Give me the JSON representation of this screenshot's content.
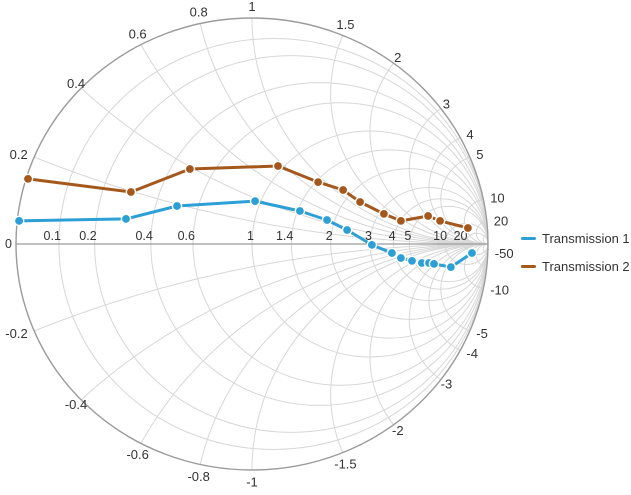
{
  "legend": {
    "items": [
      {
        "label": "Transmission 1",
        "color": "#2b9fd6"
      },
      {
        "label": "Transmission 2",
        "color": "#a4581c"
      }
    ]
  },
  "chart_data": {
    "type": "smith",
    "title": "",
    "grid_on": true,
    "legend_position": "right-middle",
    "colors": {
      "boundary": "#9b9b9b",
      "grid": "#d7d7d7",
      "axis": "#9b9b9b",
      "label": "#333333",
      "background": "#ffffff"
    },
    "grid": {
      "resistance_circles": [
        0.1,
        0.2,
        0.4,
        0.6,
        1,
        1.4,
        2,
        3,
        4,
        5,
        10,
        20
      ],
      "reactance_arcs": [
        0.2,
        0.4,
        0.6,
        0.8,
        1,
        1.5,
        2,
        3,
        4,
        5,
        10,
        20,
        50
      ],
      "axis_labels": [
        {
          "text": "0",
          "r": 0
        },
        {
          "text": "0.1",
          "r": 0.1
        },
        {
          "text": "0.2",
          "r": 0.2
        },
        {
          "text": "0.4",
          "r": 0.4
        },
        {
          "text": "0.6",
          "r": 0.6
        },
        {
          "text": "1",
          "r": 1
        },
        {
          "text": "1.4",
          "r": 1.4
        },
        {
          "text": "2",
          "r": 2
        },
        {
          "text": "3",
          "r": 3
        },
        {
          "text": "4",
          "r": 4
        },
        {
          "text": "5",
          "r": 5
        },
        {
          "text": "10",
          "r": 10
        },
        {
          "text": "20",
          "r": 20
        }
      ],
      "boundary_labels": [
        {
          "text": "0.2",
          "x": 0.2
        },
        {
          "text": "0.4",
          "x": 0.4
        },
        {
          "text": "0.6",
          "x": 0.6
        },
        {
          "text": "0.8",
          "x": 0.8
        },
        {
          "text": "1",
          "x": 1
        },
        {
          "text": "1.5",
          "x": 1.5
        },
        {
          "text": "2",
          "x": 2
        },
        {
          "text": "3",
          "x": 3
        },
        {
          "text": "4",
          "x": 4
        },
        {
          "text": "5",
          "x": 5
        },
        {
          "text": "10",
          "x": 10
        },
        {
          "text": "20",
          "x": 20
        },
        {
          "text": "-50",
          "x": -50
        },
        {
          "text": "-10",
          "x": -10
        },
        {
          "text": "-5",
          "x": -5
        },
        {
          "text": "-4",
          "x": -4
        },
        {
          "text": "-3",
          "x": -3
        },
        {
          "text": "-2",
          "x": -2
        },
        {
          "text": "-1.5",
          "x": -1.5
        },
        {
          "text": "-1",
          "x": -1
        },
        {
          "text": "-0.8",
          "x": -0.8
        },
        {
          "text": "-0.6",
          "x": -0.6
        },
        {
          "text": "-0.4",
          "x": -0.4
        },
        {
          "text": "-0.2",
          "x": -0.2
        }
      ]
    },
    "series": [
      {
        "name": "Transmission 1",
        "color": "#2b9fd6",
        "marker": "circle",
        "gamma_points": [
          [
            -0.987,
            0.102
          ],
          [
            -0.534,
            0.111
          ],
          [
            -0.318,
            0.168
          ],
          [
            0.013,
            0.19
          ],
          [
            0.203,
            0.146
          ],
          [
            0.318,
            0.106
          ],
          [
            0.403,
            0.062
          ],
          [
            0.508,
            -0.004
          ],
          [
            0.593,
            -0.04
          ],
          [
            0.631,
            -0.062
          ],
          [
            0.678,
            -0.075
          ],
          [
            0.72,
            -0.084
          ],
          [
            0.75,
            -0.084
          ],
          [
            0.771,
            -0.088
          ],
          [
            0.843,
            -0.102
          ],
          [
            0.932,
            -0.04
          ]
        ]
      },
      {
        "name": "Transmission 2",
        "color": "#a4581c",
        "marker": "circle",
        "gamma_points": [
          [
            -0.949,
            0.288
          ],
          [
            -0.513,
            0.23
          ],
          [
            -0.263,
            0.332
          ],
          [
            0.11,
            0.345
          ],
          [
            0.28,
            0.274
          ],
          [
            0.386,
            0.239
          ],
          [
            0.458,
            0.186
          ],
          [
            0.559,
            0.133
          ],
          [
            0.631,
            0.102
          ],
          [
            0.746,
            0.124
          ],
          [
            0.797,
            0.102
          ],
          [
            0.915,
            0.071
          ]
        ]
      }
    ]
  }
}
